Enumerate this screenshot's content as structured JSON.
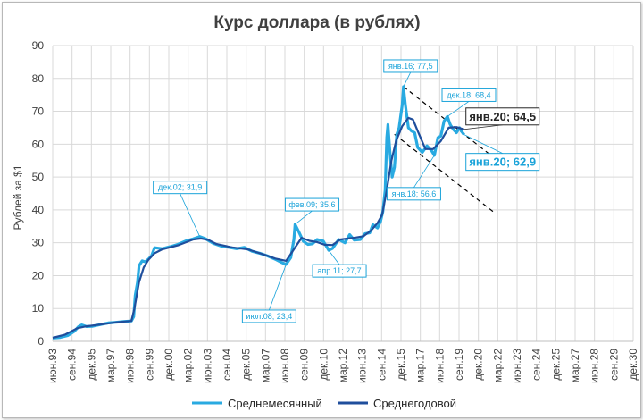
{
  "colors": {
    "monthly": "#29aae1",
    "annual": "#1f4e9c",
    "grid": "#d9d9d9",
    "annotation": "#1aa3d9",
    "trend": "#000000"
  },
  "chart_data": {
    "type": "line",
    "title": "Курс доллара (в рублях)",
    "ylabel": "Рублей за $1",
    "xlabel": "",
    "ylim": [
      0,
      90
    ],
    "yticks": [
      0,
      10,
      20,
      30,
      40,
      50,
      60,
      70,
      80,
      90
    ],
    "grid": true,
    "legend_position": "bottom",
    "xlim": [
      1993.42,
      2030.92
    ],
    "x_ticks": [
      {
        "x": 1993.42,
        "label": "июн.93"
      },
      {
        "x": 1994.67,
        "label": "сен.94"
      },
      {
        "x": 1995.92,
        "label": "дек.95"
      },
      {
        "x": 1997.17,
        "label": "мар.97"
      },
      {
        "x": 1998.42,
        "label": "июн.98"
      },
      {
        "x": 1999.67,
        "label": "сен.99"
      },
      {
        "x": 2000.92,
        "label": "дек.00"
      },
      {
        "x": 2002.17,
        "label": "мар.02"
      },
      {
        "x": 2003.42,
        "label": "июн.03"
      },
      {
        "x": 2004.67,
        "label": "сен.04"
      },
      {
        "x": 2005.92,
        "label": "дек.05"
      },
      {
        "x": 2007.17,
        "label": "мар.07"
      },
      {
        "x": 2008.42,
        "label": "июн.08"
      },
      {
        "x": 2009.67,
        "label": "сен.09"
      },
      {
        "x": 2010.92,
        "label": "дек.10"
      },
      {
        "x": 2012.17,
        "label": "мар.12"
      },
      {
        "x": 2013.42,
        "label": "июн.13"
      },
      {
        "x": 2014.67,
        "label": "сен.14"
      },
      {
        "x": 2015.92,
        "label": "дек.15"
      },
      {
        "x": 2017.17,
        "label": "мар.17"
      },
      {
        "x": 2018.42,
        "label": "июн.18"
      },
      {
        "x": 2019.67,
        "label": "сен.19"
      },
      {
        "x": 2020.92,
        "label": "дек.20"
      },
      {
        "x": 2022.17,
        "label": "мар.22"
      },
      {
        "x": 2023.42,
        "label": "июн.23"
      },
      {
        "x": 2024.67,
        "label": "сен.24"
      },
      {
        "x": 2025.92,
        "label": "дек.25"
      },
      {
        "x": 2027.17,
        "label": "мар.27"
      },
      {
        "x": 2028.42,
        "label": "июн.28"
      },
      {
        "x": 2029.67,
        "label": "сен.29"
      },
      {
        "x": 2030.92,
        "label": "дек.30"
      }
    ],
    "series": [
      {
        "name": "Среднемесячный",
        "color": "#29aae1",
        "points": [
          [
            1993.42,
            1.0
          ],
          [
            1993.9,
            1.2
          ],
          [
            1994.4,
            1.8
          ],
          [
            1994.8,
            3.0
          ],
          [
            1995.1,
            4.5
          ],
          [
            1995.3,
            5.0
          ],
          [
            1995.6,
            4.5
          ],
          [
            1996.0,
            4.6
          ],
          [
            1996.5,
            5.1
          ],
          [
            1997.0,
            5.6
          ],
          [
            1997.5,
            5.8
          ],
          [
            1998.0,
            6.0
          ],
          [
            1998.5,
            6.2
          ],
          [
            1998.65,
            7.5
          ],
          [
            1998.75,
            14.0
          ],
          [
            1998.9,
            18.0
          ],
          [
            1999.0,
            23.0
          ],
          [
            1999.2,
            24.5
          ],
          [
            1999.4,
            24.2
          ],
          [
            1999.6,
            25.0
          ],
          [
            1999.8,
            26.0
          ],
          [
            2000.0,
            28.5
          ],
          [
            2000.5,
            28.2
          ],
          [
            2001.0,
            28.8
          ],
          [
            2001.5,
            29.5
          ],
          [
            2002.0,
            30.5
          ],
          [
            2002.5,
            31.2
          ],
          [
            2002.92,
            31.9
          ],
          [
            2003.3,
            31.2
          ],
          [
            2003.8,
            29.8
          ],
          [
            2004.3,
            29.0
          ],
          [
            2004.8,
            28.6
          ],
          [
            2005.3,
            28.2
          ],
          [
            2005.8,
            28.6
          ],
          [
            2006.3,
            27.4
          ],
          [
            2006.8,
            26.8
          ],
          [
            2007.3,
            26.0
          ],
          [
            2007.8,
            25.0
          ],
          [
            2008.2,
            24.0
          ],
          [
            2008.5,
            23.4
          ],
          [
            2008.8,
            25.5
          ],
          [
            2009.0,
            31.0
          ],
          [
            2009.08,
            35.6
          ],
          [
            2009.3,
            33.5
          ],
          [
            2009.6,
            30.5
          ],
          [
            2009.9,
            29.5
          ],
          [
            2010.2,
            29.7
          ],
          [
            2010.5,
            31.0
          ],
          [
            2010.9,
            30.5
          ],
          [
            2011.25,
            27.7
          ],
          [
            2011.5,
            28.3
          ],
          [
            2011.9,
            31.0
          ],
          [
            2012.3,
            30.0
          ],
          [
            2012.6,
            32.5
          ],
          [
            2012.9,
            30.8
          ],
          [
            2013.3,
            31.0
          ],
          [
            2013.6,
            32.8
          ],
          [
            2013.9,
            33.0
          ],
          [
            2014.1,
            35.5
          ],
          [
            2014.4,
            34.5
          ],
          [
            2014.6,
            36.5
          ],
          [
            2014.75,
            39.5
          ],
          [
            2014.9,
            46.0
          ],
          [
            2015.0,
            62.0
          ],
          [
            2015.08,
            66.0
          ],
          [
            2015.2,
            58.0
          ],
          [
            2015.35,
            50.0
          ],
          [
            2015.5,
            53.0
          ],
          [
            2015.65,
            63.0
          ],
          [
            2015.8,
            65.0
          ],
          [
            2016.0,
            72.0
          ],
          [
            2016.08,
            77.5
          ],
          [
            2016.2,
            72.0
          ],
          [
            2016.4,
            65.0
          ],
          [
            2016.6,
            64.0
          ],
          [
            2016.8,
            63.5
          ],
          [
            2017.0,
            59.0
          ],
          [
            2017.3,
            57.5
          ],
          [
            2017.6,
            59.5
          ],
          [
            2017.9,
            58.0
          ],
          [
            2018.08,
            56.6
          ],
          [
            2018.3,
            62.0
          ],
          [
            2018.5,
            62.5
          ],
          [
            2018.7,
            67.0
          ],
          [
            2018.92,
            68.4
          ],
          [
            2019.1,
            66.0
          ],
          [
            2019.3,
            64.5
          ],
          [
            2019.5,
            63.5
          ],
          [
            2019.7,
            65.0
          ],
          [
            2019.85,
            63.8
          ],
          [
            2020.0,
            62.9
          ]
        ]
      },
      {
        "name": "Среднегодовой",
        "color": "#1f4e9c",
        "points": [
          [
            1993.42,
            1.1
          ],
          [
            1994.2,
            2.0
          ],
          [
            1995.0,
            4.0
          ],
          [
            1995.5,
            4.5
          ],
          [
            1996.5,
            5.1
          ],
          [
            1997.5,
            5.8
          ],
          [
            1998.5,
            6.2
          ],
          [
            1998.7,
            10.0
          ],
          [
            1999.0,
            18.0
          ],
          [
            1999.3,
            22.5
          ],
          [
            1999.6,
            24.8
          ],
          [
            2000.0,
            26.8
          ],
          [
            2000.5,
            28.0
          ],
          [
            2001.5,
            29.2
          ],
          [
            2002.5,
            31.0
          ],
          [
            2003.0,
            31.3
          ],
          [
            2003.5,
            30.8
          ],
          [
            2004.0,
            29.6
          ],
          [
            2005.0,
            28.6
          ],
          [
            2006.0,
            28.0
          ],
          [
            2007.0,
            26.5
          ],
          [
            2007.8,
            25.2
          ],
          [
            2008.5,
            24.5
          ],
          [
            2009.0,
            28.0
          ],
          [
            2009.5,
            31.5
          ],
          [
            2010.0,
            30.6
          ],
          [
            2010.5,
            30.2
          ],
          [
            2011.0,
            29.4
          ],
          [
            2011.5,
            29.3
          ],
          [
            2012.0,
            31.0
          ],
          [
            2012.5,
            31.3
          ],
          [
            2013.0,
            31.6
          ],
          [
            2013.5,
            32.0
          ],
          [
            2014.0,
            33.8
          ],
          [
            2014.4,
            36.0
          ],
          [
            2014.7,
            38.5
          ],
          [
            2015.0,
            46.0
          ],
          [
            2015.3,
            55.0
          ],
          [
            2015.6,
            61.0
          ],
          [
            2016.0,
            65.5
          ],
          [
            2016.4,
            68.0
          ],
          [
            2016.7,
            67.5
          ],
          [
            2017.0,
            64.0
          ],
          [
            2017.5,
            58.5
          ],
          [
            2018.0,
            58.5
          ],
          [
            2018.5,
            61.0
          ],
          [
            2019.0,
            65.0
          ],
          [
            2019.5,
            65.2
          ],
          [
            2020.0,
            64.5
          ]
        ]
      }
    ],
    "trend_lines": [
      {
        "from": [
          2016.08,
          77.5
        ],
        "to": [
          2022.3,
          54.5
        ]
      },
      {
        "from": [
          2015.5,
          63.0
        ],
        "to": [
          2022.0,
          39.0
        ]
      }
    ],
    "annotations": [
      {
        "x": 2002.92,
        "y": 31.9,
        "text": "дек.02; 31,9",
        "style": "small"
      },
      {
        "x": 2008.5,
        "y": 23.4,
        "text": "июл.08; 23,4",
        "style": "small"
      },
      {
        "x": 2009.08,
        "y": 35.6,
        "text": "фев.09; 35,6",
        "style": "small"
      },
      {
        "x": 2011.25,
        "y": 27.7,
        "text": "апр.11; 27,7",
        "style": "small"
      },
      {
        "x": 2016.08,
        "y": 77.5,
        "text": "янв.16; 77,5",
        "style": "small"
      },
      {
        "x": 2018.08,
        "y": 56.6,
        "text": "янв.18; 56,6",
        "style": "small"
      },
      {
        "x": 2018.92,
        "y": 68.4,
        "text": "дек.18; 68,4",
        "style": "small"
      },
      {
        "x": 2020.0,
        "y": 64.5,
        "text": "янв.20; 64,5",
        "style": "big-black"
      },
      {
        "x": 2020.0,
        "y": 62.9,
        "text": "янв.20; 62,9",
        "style": "big-blue"
      }
    ]
  }
}
